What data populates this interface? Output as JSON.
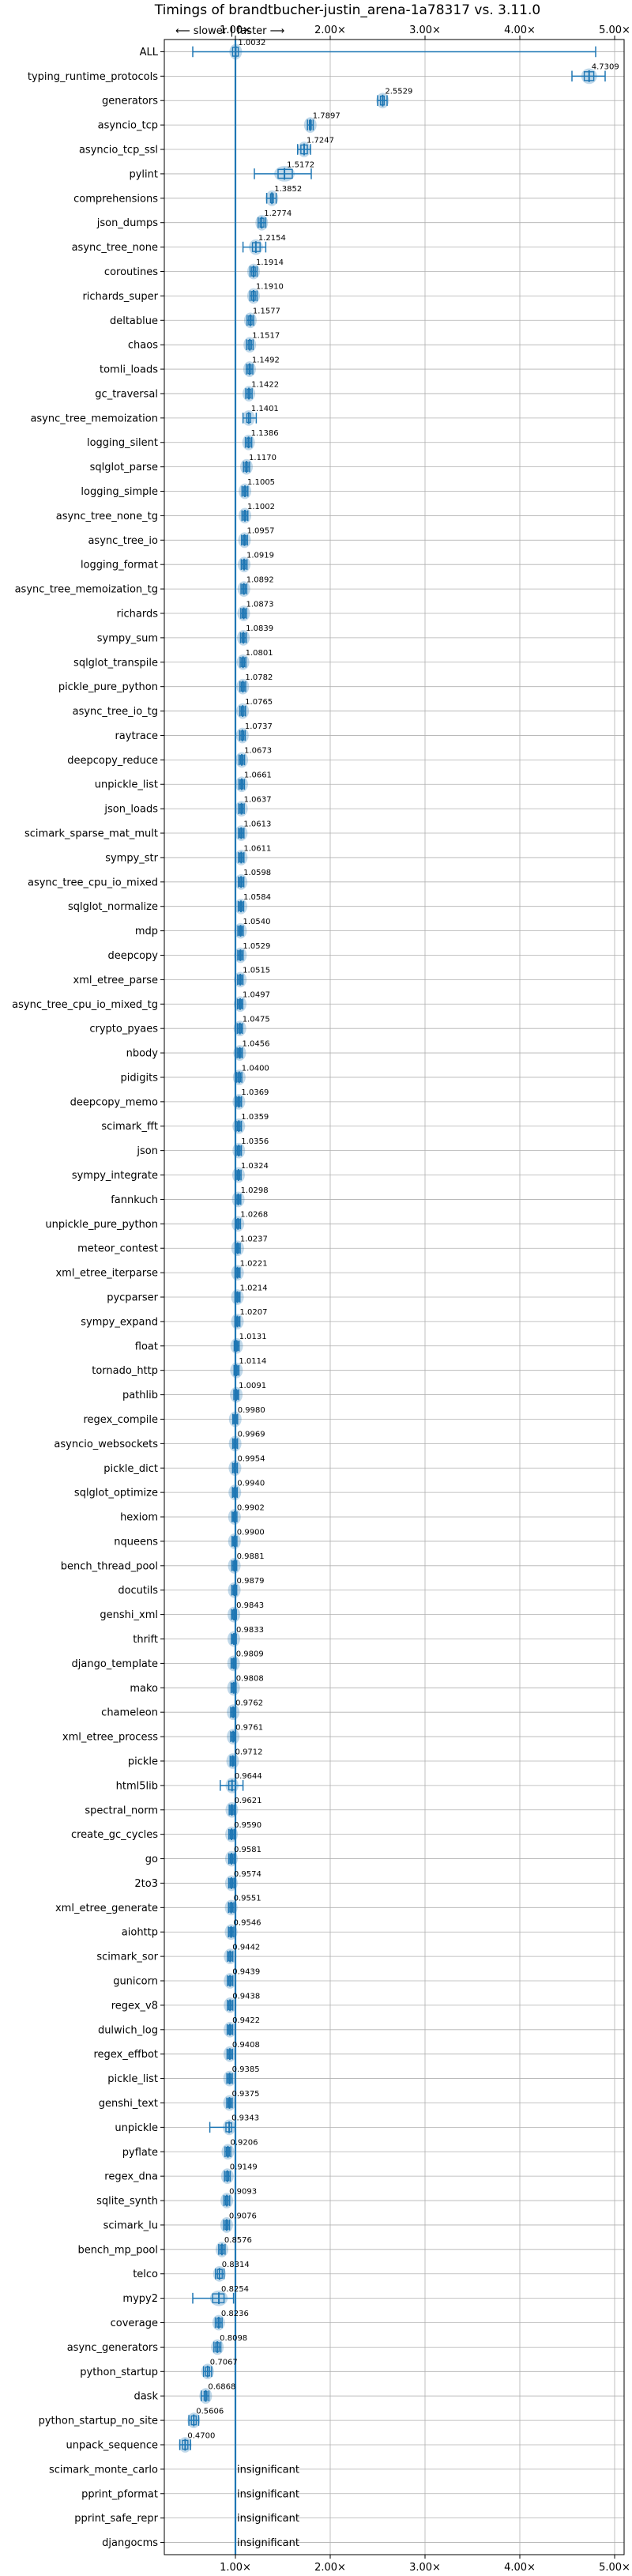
{
  "chart_data": {
    "type": "box",
    "title": "Timings of brandtbucher-justin_arena-1a78317 vs. 3.11.0",
    "direction_hint": "⟵ slower | faster ⟶",
    "xlim": [
      0.25,
      5.1
    ],
    "xticks": [
      1.0,
      2.0,
      3.0,
      4.0,
      5.0
    ],
    "xtick_labels": [
      "1.00×",
      "2.00×",
      "3.00×",
      "4.00×",
      "5.00×"
    ],
    "reference_line": 1.0,
    "grid": true,
    "colors": {
      "box": "#1f77b4",
      "violin": "#1f77b4"
    },
    "categories": [
      "ALL",
      "typing_runtime_protocols",
      "generators",
      "asyncio_tcp",
      "asyncio_tcp_ssl",
      "pylint",
      "comprehensions",
      "json_dumps",
      "async_tree_none",
      "coroutines",
      "richards_super",
      "deltablue",
      "chaos",
      "tomli_loads",
      "gc_traversal",
      "async_tree_memoization",
      "logging_silent",
      "sqlglot_parse",
      "logging_simple",
      "async_tree_none_tg",
      "async_tree_io",
      "logging_format",
      "async_tree_memoization_tg",
      "richards",
      "sympy_sum",
      "sqlglot_transpile",
      "pickle_pure_python",
      "async_tree_io_tg",
      "raytrace",
      "deepcopy_reduce",
      "unpickle_list",
      "json_loads",
      "scimark_sparse_mat_mult",
      "sympy_str",
      "async_tree_cpu_io_mixed",
      "sqlglot_normalize",
      "mdp",
      "deepcopy",
      "xml_etree_parse",
      "async_tree_cpu_io_mixed_tg",
      "crypto_pyaes",
      "nbody",
      "pidigits",
      "deepcopy_memo",
      "scimark_fft",
      "json",
      "sympy_integrate",
      "fannkuch",
      "unpickle_pure_python",
      "meteor_contest",
      "xml_etree_iterparse",
      "pycparser",
      "sympy_expand",
      "float",
      "tornado_http",
      "pathlib",
      "regex_compile",
      "asyncio_websockets",
      "pickle_dict",
      "sqlglot_optimize",
      "hexiom",
      "nqueens",
      "bench_thread_pool",
      "docutils",
      "genshi_xml",
      "thrift",
      "django_template",
      "mako",
      "chameleon",
      "xml_etree_process",
      "pickle",
      "html5lib",
      "spectral_norm",
      "create_gc_cycles",
      "go",
      "2to3",
      "xml_etree_generate",
      "aiohttp",
      "scimark_sor",
      "gunicorn",
      "regex_v8",
      "dulwich_log",
      "regex_effbot",
      "pickle_list",
      "genshi_text",
      "unpickle",
      "pyflate",
      "regex_dna",
      "sqlite_synth",
      "scimark_lu",
      "bench_mp_pool",
      "telco",
      "mypy2",
      "coverage",
      "async_generators",
      "python_startup",
      "dask",
      "python_startup_no_site",
      "unpack_sequence",
      "scimark_monte_carlo",
      "pprint_pformat",
      "pprint_safe_repr",
      "djangocms"
    ],
    "values": [
      1.0032,
      4.7309,
      2.5529,
      1.7897,
      1.7247,
      1.5172,
      1.3852,
      1.2774,
      1.2154,
      1.1914,
      1.191,
      1.1577,
      1.1517,
      1.1492,
      1.1422,
      1.1401,
      1.1386,
      1.117,
      1.1005,
      1.1002,
      1.0957,
      1.0919,
      1.0892,
      1.0873,
      1.0839,
      1.0801,
      1.0782,
      1.0765,
      1.0737,
      1.0673,
      1.0661,
      1.0637,
      1.0613,
      1.0611,
      1.0598,
      1.0584,
      1.054,
      1.0529,
      1.0515,
      1.0497,
      1.0475,
      1.0456,
      1.04,
      1.0369,
      1.0359,
      1.0356,
      1.0324,
      1.0298,
      1.0268,
      1.0237,
      1.0221,
      1.0214,
      1.0207,
      1.0131,
      1.0114,
      1.0091,
      0.998,
      0.9969,
      0.9954,
      0.994,
      0.9902,
      0.99,
      0.9881,
      0.9879,
      0.9843,
      0.9833,
      0.9809,
      0.9808,
      0.9762,
      0.9761,
      0.9712,
      0.9644,
      0.9621,
      0.959,
      0.9581,
      0.9574,
      0.9551,
      0.9546,
      0.9442,
      0.9439,
      0.9438,
      0.9422,
      0.9408,
      0.9385,
      0.9375,
      0.9343,
      0.9206,
      0.9149,
      0.9093,
      0.9076,
      0.8576,
      0.8314,
      0.8254,
      0.8236,
      0.8098,
      0.7067,
      0.6868,
      0.5606,
      0.47,
      null,
      null,
      null,
      null
    ],
    "value_labels": [
      "1.0032",
      "4.7309",
      "2.5529",
      "1.7897",
      "1.7247",
      "1.5172",
      "1.3852",
      "1.2774",
      "1.2154",
      "1.1914",
      "1.1910",
      "1.1577",
      "1.1517",
      "1.1492",
      "1.1422",
      "1.1401",
      "1.1386",
      "1.1170",
      "1.1005",
      "1.1002",
      "1.0957",
      "1.0919",
      "1.0892",
      "1.0873",
      "1.0839",
      "1.0801",
      "1.0782",
      "1.0765",
      "1.0737",
      "1.0673",
      "1.0661",
      "1.0637",
      "1.0613",
      "1.0611",
      "1.0598",
      "1.0584",
      "1.0540",
      "1.0529",
      "1.0515",
      "1.0497",
      "1.0475",
      "1.0456",
      "1.0400",
      "1.0369",
      "1.0359",
      "1.0356",
      "1.0324",
      "1.0298",
      "1.0268",
      "1.0237",
      "1.0221",
      "1.0214",
      "1.0207",
      "1.0131",
      "1.0114",
      "1.0091",
      "0.9980",
      "0.9969",
      "0.9954",
      "0.9940",
      "0.9902",
      "0.9900",
      "0.9881",
      "0.9879",
      "0.9843",
      "0.9833",
      "0.9809",
      "0.9808",
      "0.9762",
      "0.9761",
      "0.9712",
      "0.9644",
      "0.9621",
      "0.9590",
      "0.9581",
      "0.9574",
      "0.9551",
      "0.9546",
      "0.9442",
      "0.9439",
      "0.9438",
      "0.9422",
      "0.9408",
      "0.9385",
      "0.9375",
      "0.9343",
      "0.9206",
      "0.9149",
      "0.9093",
      "0.9076",
      "0.8576",
      "0.8314",
      "0.8254",
      "0.8236",
      "0.8098",
      "0.7067",
      "0.6868",
      "0.5606",
      "0.4700",
      "insignificant",
      "insignificant",
      "insignificant",
      "insignificant"
    ],
    "spreads": {
      "ALL": [
        0.55,
        0.97,
        1.03,
        4.8
      ],
      "typing_runtime_protocols": [
        4.55,
        4.68,
        4.78,
        4.9
      ],
      "generators": [
        2.5,
        2.53,
        2.57,
        2.6
      ],
      "asyncio_tcp": [
        1.76,
        1.78,
        1.8,
        1.82
      ],
      "pylint": [
        1.2,
        1.45,
        1.6,
        1.8
      ],
      "comprehensions": [
        1.33,
        1.37,
        1.4,
        1.43
      ],
      "json_dumps": [
        1.24,
        1.26,
        1.3,
        1.32
      ],
      "async_tree_none": [
        1.08,
        1.18,
        1.26,
        1.32
      ],
      "async_tree_memoization": [
        1.08,
        1.12,
        1.16,
        1.22
      ],
      "html5lib": [
        0.84,
        0.93,
        1.0,
        1.08
      ],
      "unpickle": [
        0.73,
        0.9,
        0.96,
        1.0
      ],
      "mypy2": [
        0.55,
        0.76,
        0.88,
        0.98
      ],
      "telco": [
        0.79,
        0.81,
        0.86,
        0.88
      ],
      "dask": [
        0.64,
        0.67,
        0.7,
        0.72
      ]
    }
  }
}
